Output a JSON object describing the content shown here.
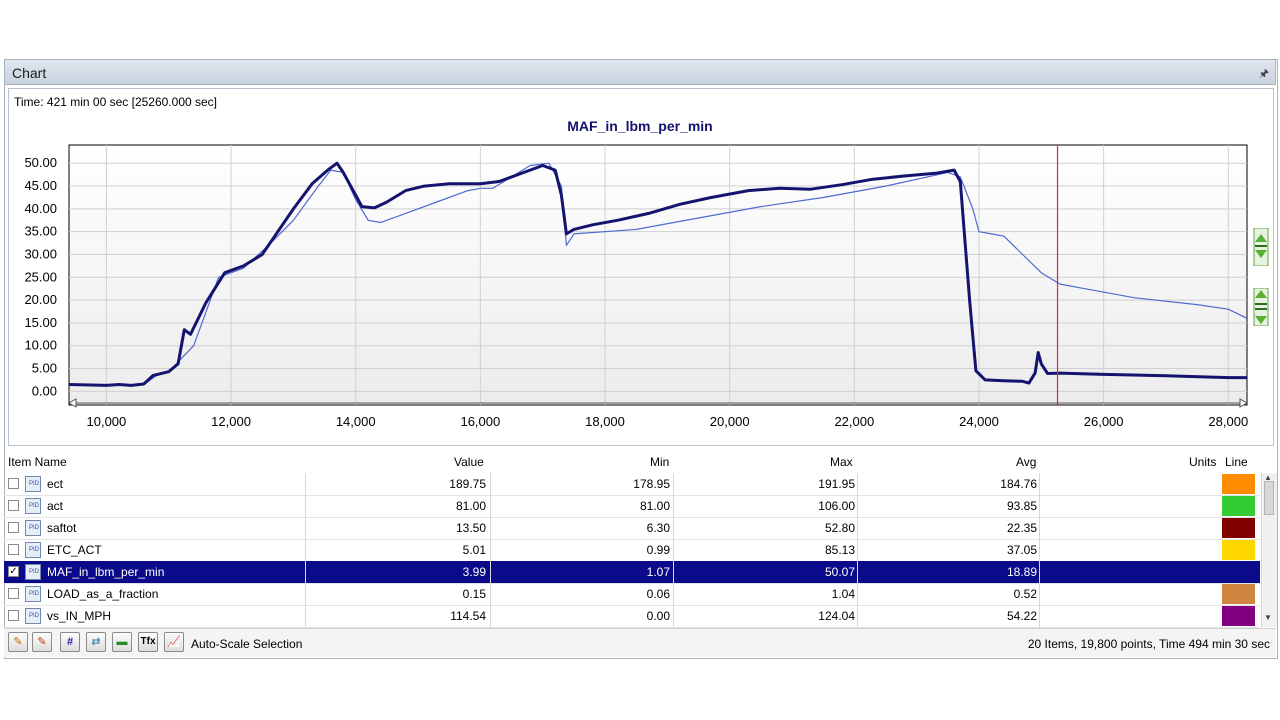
{
  "panel": {
    "title": "Chart",
    "pin_icon": "pin-icon"
  },
  "time_readout": "Time: 421 min 00 sec [25260.000 sec]",
  "chart_data": {
    "type": "line",
    "title": "MAF_in_lbm_per_min",
    "xlabel": "",
    "ylabel": "",
    "xlim": [
      9400,
      28300
    ],
    "ylim": [
      -3,
      54
    ],
    "x_ticks": [
      10000,
      12000,
      14000,
      16000,
      18000,
      20000,
      22000,
      24000,
      26000,
      28000
    ],
    "x_tick_labels": [
      "10,000",
      "12,000",
      "14,000",
      "16,000",
      "18,000",
      "20,000",
      "22,000",
      "24,000",
      "26,000",
      "28,000"
    ],
    "y_ticks": [
      0,
      5,
      10,
      15,
      20,
      25,
      30,
      35,
      40,
      45,
      50
    ],
    "y_tick_labels": [
      "0.00",
      "5.00",
      "10.00",
      "15.00",
      "20.00",
      "25.00",
      "30.00",
      "35.00",
      "40.00",
      "45.00",
      "50.00"
    ],
    "cursor_x": 25260,
    "grid": true,
    "series": [
      {
        "color": "#14146e",
        "width": 3,
        "points": [
          [
            9400,
            1.5
          ],
          [
            10000,
            1.3
          ],
          [
            10200,
            1.5
          ],
          [
            10400,
            1.3
          ],
          [
            10600,
            1.6
          ],
          [
            10750,
            3.5
          ],
          [
            11000,
            4.3
          ],
          [
            11150,
            6.0
          ],
          [
            11250,
            13.5
          ],
          [
            11350,
            12.5
          ],
          [
            11600,
            19.5
          ],
          [
            11900,
            26.0
          ],
          [
            12200,
            27.5
          ],
          [
            12500,
            30.0
          ],
          [
            12700,
            34.0
          ],
          [
            13000,
            40.0
          ],
          [
            13300,
            45.5
          ],
          [
            13550,
            48.5
          ],
          [
            13700,
            50.0
          ],
          [
            13800,
            48.0
          ],
          [
            14000,
            43.0
          ],
          [
            14100,
            40.5
          ],
          [
            14300,
            40.2
          ],
          [
            14500,
            41.5
          ],
          [
            14800,
            44.0
          ],
          [
            15100,
            45.0
          ],
          [
            15500,
            45.5
          ],
          [
            16000,
            45.5
          ],
          [
            16300,
            46.0
          ],
          [
            16700,
            48.0
          ],
          [
            17000,
            49.5
          ],
          [
            17200,
            48.5
          ],
          [
            17300,
            43.0
          ],
          [
            17380,
            34.5
          ],
          [
            17500,
            35.5
          ],
          [
            17800,
            36.5
          ],
          [
            18200,
            37.5
          ],
          [
            18700,
            39.0
          ],
          [
            19200,
            41.0
          ],
          [
            19700,
            42.5
          ],
          [
            20300,
            44.0
          ],
          [
            20800,
            44.5
          ],
          [
            21300,
            44.3
          ],
          [
            21800,
            45.3
          ],
          [
            22300,
            46.5
          ],
          [
            22800,
            47.2
          ],
          [
            23300,
            47.8
          ],
          [
            23600,
            48.5
          ],
          [
            23700,
            46.0
          ],
          [
            23850,
            20.0
          ],
          [
            23950,
            4.5
          ],
          [
            24100,
            2.5
          ],
          [
            24400,
            2.3
          ],
          [
            24700,
            2.2
          ],
          [
            24800,
            1.8
          ],
          [
            24900,
            4.0
          ],
          [
            24950,
            8.5
          ],
          [
            25000,
            6.0
          ],
          [
            25100,
            3.9
          ],
          [
            25300,
            4.0
          ],
          [
            26000,
            3.7
          ],
          [
            27000,
            3.4
          ],
          [
            28000,
            3.0
          ],
          [
            28300,
            3.0
          ]
        ]
      },
      {
        "color": "#4f6ad0",
        "width": 1.2,
        "points": [
          [
            9400,
            1.6
          ],
          [
            10000,
            1.4
          ],
          [
            10600,
            1.5
          ],
          [
            10800,
            3.4
          ],
          [
            11000,
            4.3
          ],
          [
            11400,
            10.0
          ],
          [
            11800,
            25.0
          ],
          [
            12200,
            27.0
          ],
          [
            12600,
            32.0
          ],
          [
            13000,
            37.5
          ],
          [
            13400,
            45.0
          ],
          [
            13600,
            48.5
          ],
          [
            13800,
            48.0
          ],
          [
            14000,
            42.0
          ],
          [
            14200,
            37.5
          ],
          [
            14400,
            37.0
          ],
          [
            14800,
            39.0
          ],
          [
            15300,
            41.5
          ],
          [
            15800,
            44.0
          ],
          [
            16000,
            44.5
          ],
          [
            16200,
            44.5
          ],
          [
            16500,
            47.0
          ],
          [
            16800,
            49.5
          ],
          [
            17100,
            50.0
          ],
          [
            17300,
            45.0
          ],
          [
            17380,
            32.0
          ],
          [
            17500,
            34.5
          ],
          [
            18500,
            35.5
          ],
          [
            19500,
            38.0
          ],
          [
            20500,
            40.5
          ],
          [
            21500,
            42.5
          ],
          [
            22500,
            45.0
          ],
          [
            23500,
            48.0
          ],
          [
            23700,
            47.0
          ],
          [
            23900,
            40.0
          ],
          [
            24000,
            35.0
          ],
          [
            24200,
            34.5
          ],
          [
            24400,
            34.0
          ],
          [
            24700,
            30.0
          ],
          [
            25000,
            26.0
          ],
          [
            25300,
            23.5
          ],
          [
            25700,
            22.5
          ],
          [
            26500,
            20.5
          ],
          [
            27500,
            19.0
          ],
          [
            28000,
            18.0
          ],
          [
            28300,
            16.0
          ]
        ]
      }
    ]
  },
  "table": {
    "columns": {
      "item": "Item Name",
      "value": "Value",
      "min": "Min",
      "max": "Max",
      "avg": "Avg",
      "units": "Units",
      "line": "Line"
    },
    "rows": [
      {
        "checked": false,
        "name": "ect",
        "value": "189.75",
        "min": "178.95",
        "max": "191.95",
        "avg": "184.76",
        "units": "",
        "color": "#ff8c00"
      },
      {
        "checked": false,
        "name": "act",
        "value": "81.00",
        "min": "81.00",
        "max": "106.00",
        "avg": "93.85",
        "units": "",
        "color": "#33cc33"
      },
      {
        "checked": false,
        "name": "saftot",
        "value": "13.50",
        "min": "6.30",
        "max": "52.80",
        "avg": "22.35",
        "units": "",
        "color": "#800000"
      },
      {
        "checked": false,
        "name": "ETC_ACT",
        "value": "5.01",
        "min": "0.99",
        "max": "85.13",
        "avg": "37.05",
        "units": "",
        "color": "#ffd700"
      },
      {
        "checked": true,
        "name": "MAF_in_lbm_per_min",
        "value": "3.99",
        "min": "1.07",
        "max": "50.07",
        "avg": "18.89",
        "units": "",
        "color": "#0a0a8a"
      },
      {
        "checked": false,
        "name": "LOAD_as_a_fraction",
        "value": "0.15",
        "min": "0.06",
        "max": "1.04",
        "avg": "0.52",
        "units": "",
        "color": "#cd853f"
      },
      {
        "checked": false,
        "name": "vs_IN_MPH",
        "value": "114.54",
        "min": "0.00",
        "max": "124.04",
        "avg": "54.22",
        "units": "",
        "color": "#800080"
      }
    ]
  },
  "toolbar": {
    "buttons": [
      "pencil-edit-icon",
      "pencil-delete-icon",
      "hash-icon",
      "link-icon",
      "minus-line-icon",
      "tfx-icon",
      "chart-icon"
    ],
    "hash_label": "#",
    "tfx_label": "Tfx",
    "autoscale_label": "Auto-Scale Selection",
    "status": "20 Items, 19,800 points, Time 494 min 30 sec"
  }
}
